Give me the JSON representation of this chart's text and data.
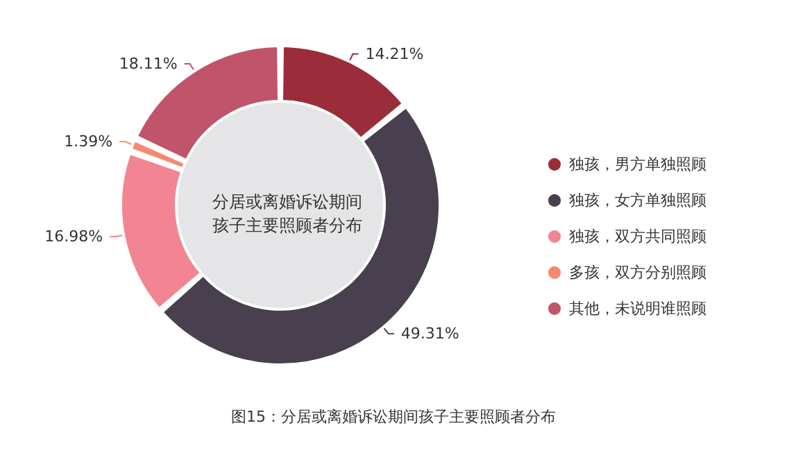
{
  "chart_data": {
    "type": "donut",
    "title": "分居或离婚诉讼期间孩子主要照顾者分布",
    "annotations": [
      "图15：分居或离婚诉讼期间孩子主要照顾者分布"
    ],
    "categories": [
      "独孩，男方单独照顾",
      "独孩，女方单独照顾",
      "独孩，双方共同照顾",
      "多孩，双方分别照顾",
      "其他，未说明谁照顾"
    ],
    "values": [
      14.21,
      49.31,
      16.98,
      1.39,
      18.11
    ],
    "colors": [
      "#9b2d3a",
      "#48404f",
      "#f28591",
      "#f58a70",
      "#c0546a"
    ],
    "value_labels": [
      "14.21%",
      "49.31%",
      "16.98%",
      "1.39%",
      "18.11%"
    ],
    "legend": "right"
  }
}
